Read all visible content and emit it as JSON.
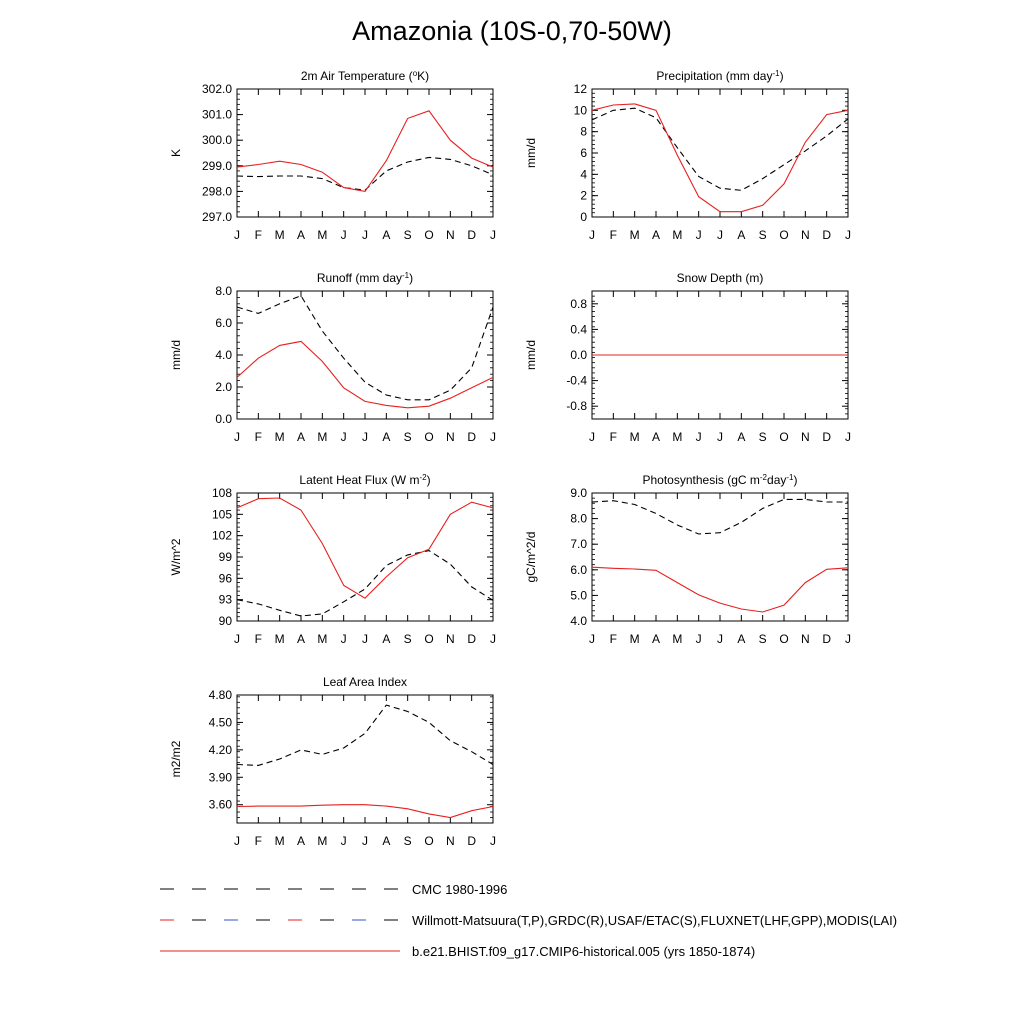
{
  "title": "Amazonia (10S-0,70-50W)",
  "colors": {
    "obs": "#000000",
    "model": "#e8201f",
    "cmc": "#000000"
  },
  "months": [
    "J",
    "F",
    "M",
    "A",
    "M",
    "J",
    "J",
    "A",
    "S",
    "O",
    "N",
    "D",
    "J"
  ],
  "chart_data": [
    {
      "type": "line",
      "title": "2m Air Temperature (",
      "title_sup": "o",
      "title_end": "K)",
      "ylabel": "K",
      "ylim": [
        297.0,
        302.0
      ],
      "yticks": [
        "297.0",
        "298.0",
        "299.0",
        "300.0",
        "301.0",
        "302.0"
      ],
      "ytick_values": [
        297,
        298,
        299,
        300,
        301,
        302
      ],
      "series": [
        {
          "name": "obs",
          "style": "dashed",
          "values": [
            298.6,
            298.58,
            298.6,
            298.6,
            298.5,
            298.15,
            298.05,
            298.8,
            299.15,
            299.33,
            299.25,
            299.0,
            298.65
          ]
        },
        {
          "name": "model",
          "style": "solid",
          "values": [
            298.95,
            299.05,
            299.18,
            299.05,
            298.75,
            298.15,
            298.0,
            299.2,
            300.85,
            301.15,
            300.0,
            299.3,
            298.95
          ]
        }
      ]
    },
    {
      "type": "line",
      "title": "Precipitation (mm day",
      "title_sup": "-1",
      "title_end": ")",
      "ylabel": "mm/d",
      "ylim": [
        0,
        12
      ],
      "yticks": [
        "0",
        "2",
        "4",
        "6",
        "8",
        "10",
        "12"
      ],
      "ytick_values": [
        0,
        2,
        4,
        6,
        8,
        10,
        12
      ],
      "series": [
        {
          "name": "obs",
          "style": "dashed",
          "values": [
            9.1,
            10.0,
            10.2,
            9.3,
            6.5,
            3.8,
            2.7,
            2.5,
            3.6,
            4.9,
            6.2,
            7.6,
            9.2
          ]
        },
        {
          "name": "model",
          "style": "solid",
          "values": [
            10.0,
            10.5,
            10.6,
            10.0,
            5.8,
            1.9,
            0.5,
            0.5,
            1.1,
            3.1,
            7.0,
            9.6,
            10.0
          ]
        }
      ]
    },
    {
      "type": "line",
      "title": "Runoff (mm day",
      "title_sup": "-1",
      "title_end": ")",
      "ylabel": "mm/d",
      "ylim": [
        0,
        8
      ],
      "yticks": [
        "0.0",
        "2.0",
        "4.0",
        "6.0",
        "8.0"
      ],
      "ytick_values": [
        0,
        2,
        4,
        6,
        8
      ],
      "series": [
        {
          "name": "obs",
          "style": "dashed",
          "values": [
            7.0,
            6.6,
            7.2,
            7.7,
            5.5,
            3.8,
            2.3,
            1.5,
            1.2,
            1.2,
            1.8,
            3.2,
            7.0
          ]
        },
        {
          "name": "model",
          "style": "solid",
          "values": [
            2.6,
            3.8,
            4.6,
            4.85,
            3.6,
            1.95,
            1.1,
            0.85,
            0.7,
            0.8,
            1.3,
            1.95,
            2.6
          ]
        }
      ]
    },
    {
      "type": "line",
      "title": "Snow Depth (m)",
      "title_sup": "",
      "title_end": "",
      "ylabel": "mm/d",
      "ylim": [
        -1.0,
        1.0
      ],
      "yticks": [
        "-0.8",
        "-0.4",
        "0.0",
        "0.4",
        "0.8"
      ],
      "ytick_values": [
        -0.8,
        -0.4,
        0.0,
        0.4,
        0.8
      ],
      "series": [
        {
          "name": "obs",
          "style": "dashed",
          "values": [
            0,
            0,
            0,
            0,
            0,
            0,
            0,
            0,
            0,
            0,
            0,
            0,
            0
          ]
        },
        {
          "name": "model",
          "style": "solid",
          "values": [
            0,
            0,
            0,
            0,
            0,
            0,
            0,
            0,
            0,
            0,
            0,
            0,
            0
          ]
        }
      ]
    },
    {
      "type": "line",
      "title": "Latent Heat Flux (W m",
      "title_sup": "-2",
      "title_end": ")",
      "ylabel": "W/m^2",
      "ylim": [
        90,
        108
      ],
      "yticks": [
        "90",
        "93",
        "96",
        "99",
        "102",
        "105",
        "108"
      ],
      "ytick_values": [
        90,
        93,
        96,
        99,
        102,
        105,
        108
      ],
      "series": [
        {
          "name": "obs",
          "style": "dashed",
          "values": [
            93.0,
            92.4,
            91.5,
            90.7,
            91.0,
            92.7,
            94.5,
            97.8,
            99.3,
            99.9,
            98.0,
            94.8,
            92.9
          ]
        },
        {
          "name": "model",
          "style": "solid",
          "values": [
            105.9,
            107.2,
            107.3,
            105.6,
            100.9,
            95.0,
            93.2,
            96.2,
            98.9,
            100.1,
            105.0,
            106.7,
            105.9
          ]
        }
      ]
    },
    {
      "type": "line",
      "title": "Photosynthesis (gC m",
      "title_sup": "-2",
      "title_mid": "day",
      "title_sup2": "-1",
      "title_end": ")",
      "ylabel": "gC/m^2/d",
      "ylim": [
        4.0,
        9.0
      ],
      "yticks": [
        "4.0",
        "5.0",
        "6.0",
        "7.0",
        "8.0",
        "9.0"
      ],
      "ytick_values": [
        4,
        5,
        6,
        7,
        8,
        9
      ],
      "series": [
        {
          "name": "obs",
          "style": "dashed",
          "values": [
            8.65,
            8.7,
            8.55,
            8.2,
            7.75,
            7.4,
            7.45,
            7.85,
            8.4,
            8.75,
            8.75,
            8.65,
            8.65
          ]
        },
        {
          "name": "model",
          "style": "solid",
          "values": [
            6.1,
            6.06,
            6.03,
            5.98,
            5.5,
            5.02,
            4.7,
            4.47,
            4.35,
            4.62,
            5.5,
            6.02,
            6.08
          ]
        }
      ]
    },
    {
      "type": "line",
      "title": "Leaf Area Index",
      "title_sup": "",
      "title_end": "",
      "ylabel": "m2/m2",
      "ylim": [
        3.4,
        4.8
      ],
      "yticks": [
        "3.60",
        "3.90",
        "4.20",
        "4.50",
        "4.80"
      ],
      "ytick_values": [
        3.6,
        3.9,
        4.2,
        4.5,
        4.8
      ],
      "series": [
        {
          "name": "obs",
          "style": "dashed",
          "values": [
            4.04,
            4.03,
            4.1,
            4.2,
            4.15,
            4.22,
            4.38,
            4.69,
            4.62,
            4.5,
            4.3,
            4.18,
            4.04
          ]
        },
        {
          "name": "model",
          "style": "solid",
          "values": [
            3.58,
            3.585,
            3.585,
            3.585,
            3.595,
            3.6,
            3.6,
            3.585,
            3.555,
            3.5,
            3.46,
            3.535,
            3.58
          ]
        }
      ]
    }
  ],
  "legend": [
    {
      "label": "CMC 1980-1996",
      "style": "dashed",
      "color": "#000000"
    },
    {
      "label": "Willmott-Matsuura(T,P),GRDC(R),USAF/ETAC(S),FLUXNET(LHF,GPP),MODIS(LAI)",
      "style": "dashed-multi",
      "color": "#000000"
    },
    {
      "label": "b.e21.BHIST.f09_g17.CMIP6-historical.005 (yrs 1850-1874)",
      "style": "solid",
      "color": "#e8201f"
    }
  ]
}
